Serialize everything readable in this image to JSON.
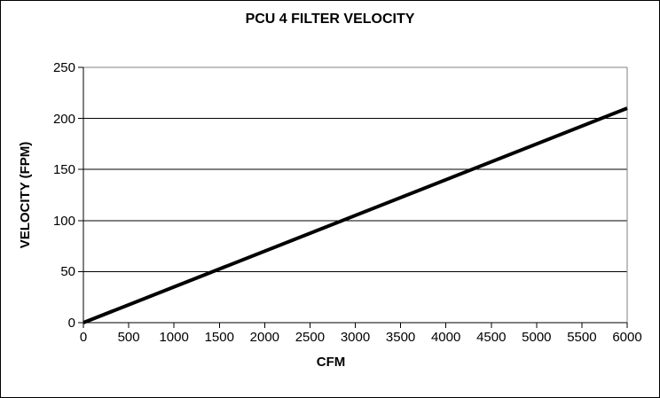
{
  "window": {
    "background": "#ffffff",
    "frame_border_color": "#000000"
  },
  "chart_data": {
    "type": "line",
    "title": "PCU 4 FILTER VELOCITY",
    "xlabel": "CFM",
    "ylabel": "VELOCITY (FPM)",
    "xlim": [
      0,
      6000
    ],
    "ylim": [
      0,
      250
    ],
    "x_ticks": [
      0,
      500,
      1000,
      1500,
      2000,
      2500,
      3000,
      3500,
      4000,
      4500,
      5000,
      5500,
      6000
    ],
    "y_ticks": [
      0,
      50,
      100,
      150,
      200,
      250
    ],
    "grid": "horizontal-major-only",
    "legend": "none",
    "series": [
      {
        "name": "PCU 4 filter velocity",
        "points": [
          [
            0,
            0
          ],
          [
            6000,
            210
          ]
        ],
        "color": "#000000",
        "width": 4
      }
    ],
    "colors": {
      "background": "#ffffff",
      "text": "#000000",
      "gridline": "#000000",
      "plot_border": "#808080",
      "axis": "#000000",
      "series_line": "#000000"
    }
  }
}
